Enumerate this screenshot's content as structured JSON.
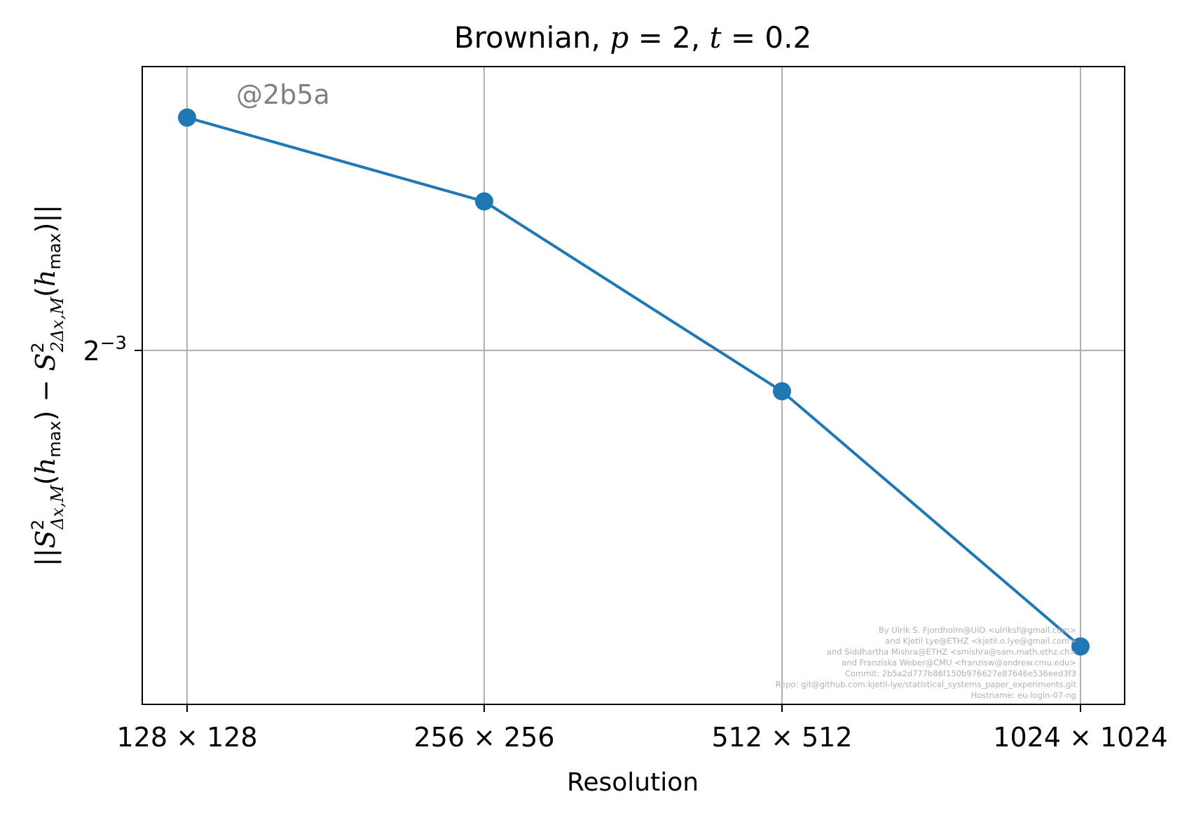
{
  "chart_data": {
    "type": "line",
    "title": "Brownian, p = 2, t = 0.2",
    "xlabel": "Resolution",
    "ylabel": "||S²_{Δx,M}(h_max) − S²_{2Δx,M}(h_max)||",
    "categories": [
      "128 × 128",
      "256 × 256",
      "512 × 512",
      "1024 × 1024"
    ],
    "series": [
      {
        "values": [
          0.1762,
          0.1557,
          0.1177,
          0.0808
        ]
      }
    ],
    "yscale": "log2",
    "yticks": [
      {
        "value": 0.125,
        "label_base": "2",
        "label_exp": "−3"
      }
    ],
    "grid": true,
    "annotation": "@2b5a",
    "colors": {
      "series": "#1f77b4",
      "grid": "#b0b0b0",
      "annotation": "#808080",
      "footer": "#b0b0b0"
    },
    "footer": [
      "By Ulrik S. Fjordholm@UiO <ulriksf@gmail.com>",
      "and Kjetil Lye@ETHZ <kjetil.o.lye@gmail.com>",
      "and Siddhartha Mishra@ETHZ <smishra@sam.math.ethz.ch>",
      "and Franziska Weber@CMU <franzisw@andrew.cmu.edu>",
      "Commit: 2b5a2d777b86f150b976627e87646e536eed3f3",
      "Repo: git@github.com:kjetil-lye/statistical_systems_paper_experiments.git",
      "Hostname: eu-login-07-ng"
    ]
  }
}
